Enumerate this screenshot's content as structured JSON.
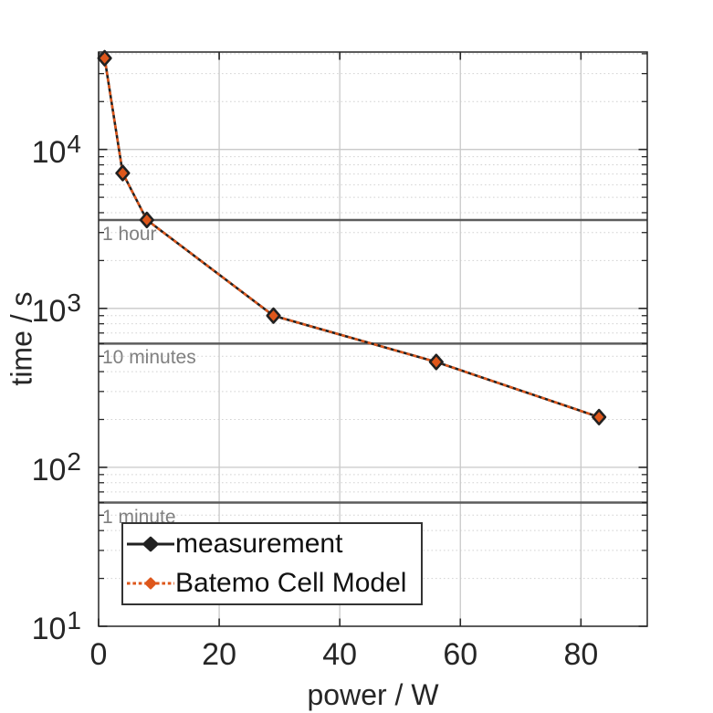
{
  "chart_data": {
    "type": "line",
    "title": "",
    "xlabel": "power / W",
    "ylabel": "time / s",
    "x_axis": {
      "ticks": [
        0,
        20,
        40,
        60,
        80
      ],
      "lim": [
        0,
        91
      ]
    },
    "y_axis": {
      "scale": "log",
      "tick_exponents": [
        1,
        2,
        3,
        4
      ],
      "lim": [
        10,
        41000
      ]
    },
    "grid": {
      "major": true,
      "minor": true
    },
    "x": [
      1,
      4,
      8,
      29,
      56,
      83
    ],
    "series": [
      {
        "name": "measurement",
        "values": [
          37500,
          7100,
          3600,
          900,
          460,
          207
        ],
        "color": "#212121",
        "line_style": "solid",
        "marker": "diamond"
      },
      {
        "name": "Batemo Cell Model",
        "values": [
          37500,
          7100,
          3600,
          900,
          460,
          207
        ],
        "color": "#DE571B",
        "line_style": "dotted",
        "marker": "diamond"
      }
    ],
    "ref_lines": [
      {
        "label": "1 hour",
        "value": 3600
      },
      {
        "label": "10 minutes",
        "value": 600
      },
      {
        "label": "1 minute",
        "value": 60
      }
    ],
    "legend": {
      "position": "southwest",
      "entries": [
        "measurement",
        "Batemo Cell Model"
      ]
    },
    "colors": {
      "background": "#ffffff",
      "axis": "#262626",
      "text": "#262626",
      "grid_major": "#c9c9c9",
      "grid_minor": "#d2d2d2",
      "ref_line": "#5c5c5c",
      "ref_label": "#808080"
    }
  }
}
